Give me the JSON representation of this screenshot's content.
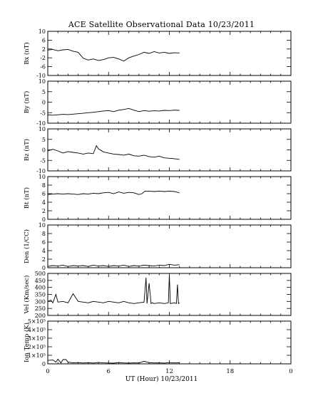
{
  "chart_data": {
    "title": "ACE Satellite Observational Data   10/23/2011",
    "xlabel": "UT (Hour)   10/23/2011",
    "x_ticks": [
      "0",
      "6",
      "12",
      "18",
      "0"
    ],
    "xlim": [
      0,
      24
    ],
    "data_end_hour": 13,
    "panels": [
      {
        "type": "line",
        "ylabel": "Bx (nT)",
        "ylim": [
          -10,
          10
        ],
        "yticks": [
          "-10",
          "-6",
          "-2",
          "2",
          "6",
          "10"
        ],
        "ytick_values": [
          -10,
          -6,
          -2,
          2,
          6,
          10
        ],
        "x": [
          0,
          0.5,
          1,
          1.5,
          2,
          2.5,
          3,
          3.5,
          4,
          4.5,
          5,
          5.5,
          6,
          6.5,
          7,
          7.5,
          8,
          8.5,
          9,
          9.5,
          10,
          10.5,
          11,
          11.5,
          12,
          12.5,
          13
        ],
        "values": [
          1.5,
          1.8,
          1.2,
          1.6,
          1.8,
          1.0,
          0.5,
          -2.2,
          -3.0,
          -2.5,
          -3.2,
          -2.8,
          -2.0,
          -1.8,
          -2.5,
          -3.5,
          -2.0,
          -1.2,
          -0.5,
          0.5,
          0.0,
          0.8,
          0.2,
          0.5,
          0.0,
          0.3,
          0.2
        ]
      },
      {
        "type": "line",
        "ylabel": "By (nT)",
        "ylim": [
          -10,
          10
        ],
        "yticks": [
          "-10",
          "-5",
          "0",
          "5",
          "10"
        ],
        "ytick_values": [
          -10,
          -5,
          0,
          5,
          10
        ],
        "x": [
          0,
          0.5,
          1,
          1.5,
          2,
          2.5,
          3,
          3.5,
          4,
          4.5,
          5,
          5.5,
          6,
          6.5,
          7,
          7.5,
          8,
          8.5,
          9,
          9.5,
          10,
          10.5,
          11,
          11.5,
          12,
          12.5,
          13
        ],
        "values": [
          -6.0,
          -6.2,
          -6.0,
          -5.8,
          -5.9,
          -5.7,
          -5.5,
          -5.3,
          -5.0,
          -4.8,
          -4.5,
          -4.2,
          -4.0,
          -4.5,
          -3.8,
          -3.5,
          -3.0,
          -3.8,
          -4.5,
          -4.0,
          -4.3,
          -4.1,
          -4.2,
          -3.9,
          -4.0,
          -3.8,
          -3.9
        ]
      },
      {
        "type": "line",
        "ylabel": "Bz (nT)",
        "ylim": [
          -10,
          10
        ],
        "yticks": [
          "-10",
          "-5",
          "0",
          "5",
          "10"
        ],
        "ytick_values": [
          -10,
          -5,
          0,
          5,
          10
        ],
        "x": [
          0,
          0.5,
          1,
          1.5,
          2,
          2.5,
          3,
          3.5,
          4,
          4.5,
          4.8,
          5,
          5.5,
          6,
          6.5,
          7,
          7.5,
          8,
          8.5,
          9,
          9.5,
          10,
          10.5,
          11,
          11.5,
          12,
          12.5,
          13
        ],
        "values": [
          -0.5,
          0.3,
          -0.5,
          -1.5,
          -0.8,
          -1.2,
          -1.5,
          -2.0,
          -1.5,
          -1.8,
          2.0,
          0.5,
          -1.0,
          -1.5,
          -2.0,
          -2.2,
          -2.5,
          -2.0,
          -2.8,
          -3.0,
          -2.5,
          -3.2,
          -3.5,
          -3.0,
          -3.8,
          -4.0,
          -4.2,
          -4.5
        ]
      },
      {
        "type": "line",
        "ylabel": "Bt (nT)",
        "ylim": [
          0,
          10
        ],
        "yticks": [
          "0",
          "2",
          "4",
          "6",
          "8",
          "10"
        ],
        "ytick_values": [
          0,
          2,
          4,
          6,
          8,
          10
        ],
        "x": [
          0,
          0.5,
          1,
          1.5,
          2,
          2.5,
          3,
          3.5,
          4,
          4.5,
          5,
          5.5,
          6,
          6.5,
          7,
          7.5,
          8,
          8.5,
          9,
          9.3,
          9.6,
          10,
          10.5,
          11,
          11.5,
          12,
          12.5,
          13
        ],
        "values": [
          5.8,
          5.9,
          6.0,
          5.9,
          6.0,
          5.9,
          5.8,
          6.0,
          5.9,
          6.1,
          6.0,
          6.2,
          6.3,
          6.0,
          6.4,
          6.1,
          6.3,
          6.2,
          5.8,
          6.0,
          6.6,
          6.6,
          6.5,
          6.6,
          6.5,
          6.6,
          6.5,
          6.2
        ]
      },
      {
        "type": "line",
        "ylabel": "Den (1/CC)",
        "ylim": [
          0,
          10
        ],
        "yticks": [
          "0",
          "2",
          "4",
          "6",
          "8",
          "10"
        ],
        "ytick_values": [
          0,
          2,
          4,
          6,
          8,
          10
        ],
        "x": [
          0,
          0.5,
          1,
          1.5,
          2,
          2.5,
          3,
          3.5,
          4,
          4.5,
          5,
          5.5,
          6,
          6.5,
          7,
          7.5,
          8,
          8.5,
          9,
          9.5,
          10,
          10.5,
          11,
          11.5,
          12,
          12.5,
          13
        ],
        "values": [
          0.3,
          0.5,
          0.4,
          0.6,
          0.3,
          0.5,
          0.4,
          0.5,
          0.3,
          0.6,
          0.4,
          0.5,
          0.3,
          0.5,
          0.4,
          0.6,
          0.3,
          0.5,
          0.4,
          0.6,
          0.5,
          0.4,
          0.6,
          0.5,
          0.8,
          0.6,
          0.7
        ]
      },
      {
        "type": "line",
        "ylabel": "Vel (Km/sec)",
        "ylim": [
          200,
          500
        ],
        "yticks": [
          "200",
          "250",
          "300",
          "350",
          "400",
          "450",
          "500"
        ],
        "ytick_values": [
          200,
          250,
          300,
          350,
          400,
          450,
          500
        ],
        "x": [
          0,
          0.3,
          0.5,
          0.8,
          1,
          1.5,
          2,
          2.5,
          3,
          3.5,
          4,
          4.5,
          5,
          5.5,
          6,
          6.5,
          7,
          7.5,
          8,
          8.5,
          9,
          9.5,
          9.7,
          9.8,
          10,
          10.2,
          10.3,
          10.5,
          11,
          11.5,
          11.9,
          12.0,
          12.1,
          12.5,
          12.7,
          12.8,
          12.9,
          13
        ],
        "values": [
          300,
          310,
          290,
          350,
          295,
          300,
          290,
          355,
          300,
          295,
          290,
          300,
          295,
          290,
          300,
          295,
          290,
          300,
          290,
          285,
          290,
          295,
          470,
          285,
          430,
          285,
          290,
          285,
          290,
          285,
          290,
          490,
          285,
          290,
          285,
          420,
          285,
          290
        ]
      },
      {
        "type": "line",
        "ylabel": "Ion Temp (K)",
        "ylim": [
          0,
          500000
        ],
        "yticks": [
          "0",
          "1×10⁵",
          "2×10⁵",
          "3×10⁵",
          "4×10⁵",
          "5×10⁵"
        ],
        "ytick_values": [
          0,
          100000,
          200000,
          300000,
          400000,
          500000
        ],
        "x": [
          0,
          0.5,
          0.8,
          1,
          1.3,
          1.5,
          1.8,
          2,
          2.5,
          3,
          3.5,
          4,
          4.5,
          5,
          5.5,
          6,
          6.5,
          7,
          7.5,
          8,
          8.5,
          9,
          9.5,
          10,
          10.5,
          11,
          11.5,
          12,
          12.5,
          13
        ],
        "values": [
          40000,
          45000,
          20000,
          55000,
          10000,
          50000,
          50000,
          20000,
          12000,
          15000,
          10000,
          14000,
          9000,
          16000,
          12000,
          10000,
          8000,
          15000,
          11000,
          9000,
          12000,
          10000,
          30000,
          14000,
          11000,
          12000,
          9000,
          15000,
          11000,
          13000
        ]
      }
    ]
  }
}
